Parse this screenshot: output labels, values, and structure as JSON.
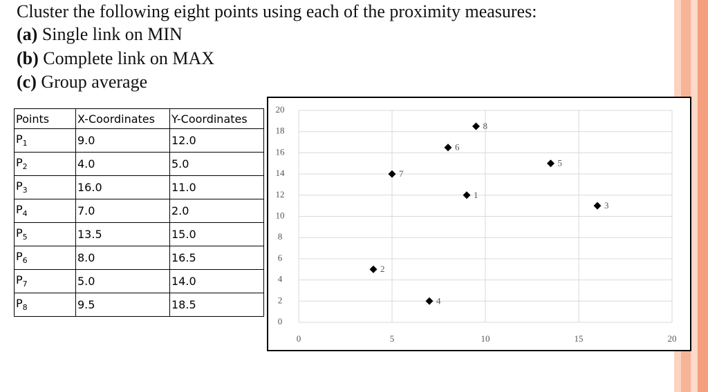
{
  "heading": "Cluster the following eight points using each of the proximity measures:",
  "items": [
    {
      "label": "(a)",
      "text": "Single link on MIN"
    },
    {
      "label": "(b)",
      "text": "Complete link on MAX"
    },
    {
      "label": "(c)",
      "text": "Group average"
    }
  ],
  "table": {
    "header": [
      "Points",
      "X-Coordinates",
      "Y-Coordinates"
    ],
    "rows": [
      {
        "point": "P",
        "index": "1",
        "x": "9.0",
        "y": "12.0"
      },
      {
        "point": "P",
        "index": "2",
        "x": "4.0",
        "y": "5.0"
      },
      {
        "point": "P",
        "index": "3",
        "x": "16.0",
        "y": "11.0"
      },
      {
        "point": "P",
        "index": "4",
        "x": "7.0",
        "y": "2.0"
      },
      {
        "point": "P",
        "index": "5",
        "x": "13.5",
        "y": "15.0"
      },
      {
        "point": "P",
        "index": "6",
        "x": "8.0",
        "y": "16.5"
      },
      {
        "point": "P",
        "index": "7",
        "x": "5.0",
        "y": "14.0"
      },
      {
        "point": "P",
        "index": "8",
        "x": "9.5",
        "y": "18.5"
      }
    ]
  },
  "chart_data": {
    "type": "scatter",
    "x": [
      9,
      4,
      16,
      7,
      13.5,
      8,
      5,
      9.5
    ],
    "y": [
      12,
      5,
      11,
      2,
      15,
      16.5,
      14,
      18.5
    ],
    "labels": [
      "1",
      "2",
      "3",
      "4",
      "5",
      "6",
      "7",
      "8"
    ],
    "color": "#000000",
    "xlim": [
      0,
      20
    ],
    "xticks": [
      0,
      5,
      10,
      15,
      20
    ],
    "ylim": [
      0,
      20
    ],
    "yticks": [
      0,
      2,
      4,
      6,
      8,
      10,
      12,
      14,
      16,
      18,
      20
    ],
    "grid": true
  }
}
